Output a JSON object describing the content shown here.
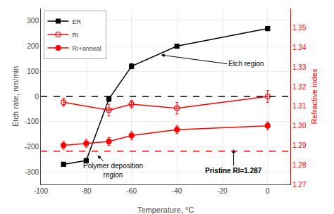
{
  "chart_data": {
    "type": "line",
    "xlabel": "Temperature, °C",
    "ylabel": "Etch rate, nm/min",
    "y2label": "Refractive index",
    "series": [
      {
        "name": "ER",
        "color": "black",
        "marker": "square",
        "axis": "y",
        "x": [
          -90,
          -80,
          -70,
          -60,
          -40,
          0
        ],
        "values": [
          -270,
          -255,
          -10,
          120,
          200,
          270
        ],
        "errors": [
          8,
          8,
          10,
          10,
          8,
          7
        ]
      },
      {
        "name": "RI",
        "color": "red",
        "marker": "circle-open",
        "axis": "y2",
        "x": [
          -90,
          -70,
          -60,
          -40,
          0
        ],
        "values": [
          1.312,
          1.308,
          1.311,
          1.309,
          1.315
        ],
        "errors": [
          0.002,
          0.003,
          0.002,
          0.003,
          0.003
        ]
      },
      {
        "name": "RI+anneal",
        "color": "red",
        "marker": "circle",
        "axis": "y2",
        "x": [
          -90,
          -80,
          -70,
          -60,
          -40,
          0
        ],
        "values": [
          1.29,
          1.291,
          1.292,
          1.295,
          1.298,
          1.3
        ],
        "errors": [
          0.002,
          0.002,
          0.002,
          0.002,
          0.002,
          0.002
        ]
      }
    ],
    "hlines": [
      {
        "value": 0,
        "axis": "y",
        "color": "black",
        "line_style": "dashed"
      },
      {
        "value": 1.287,
        "axis": "y2",
        "color": "red",
        "line_style": "dashed"
      }
    ],
    "annotations": [
      "Etch region",
      "Polymer deposition\nregion",
      "Pristine RI=1.287"
    ],
    "xlim": [
      -100,
      10
    ],
    "xticks": [
      -100,
      -80,
      -60,
      -40,
      -20,
      0
    ],
    "ylim": [
      -350,
      350
    ],
    "yticks": [
      -300,
      -200,
      -100,
      0,
      100,
      200,
      300
    ],
    "y2lim": [
      1.27,
      1.36
    ],
    "y2ticks": [
      1.27,
      1.28,
      1.29,
      {
        "value": 1.3,
        "label": "1.30"
      },
      1.31,
      1.32,
      1.33,
      1.34,
      1.35
    ],
    "grid": true,
    "legend": "upper left"
  }
}
